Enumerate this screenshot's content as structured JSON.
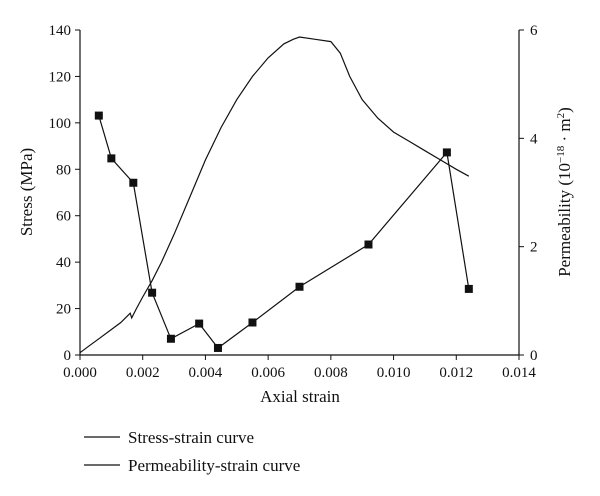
{
  "chart_data": {
    "type": "line",
    "title": "",
    "xlabel": "Axial strain",
    "ylabel_left": "Stress (MPa)",
    "ylabel_right_main": "Permeability (10",
    "ylabel_right_sup": "−18",
    "ylabel_right_mid": " · m",
    "ylabel_right_sup2": "2",
    "ylabel_right_end": ")",
    "xlim": [
      0,
      0.014
    ],
    "ylim_left": [
      0,
      140
    ],
    "ylim_right": [
      0,
      6
    ],
    "x_ticks": [
      "0.000",
      "0.002",
      "0.004",
      "0.006",
      "0.008",
      "0.010",
      "0.012",
      "0.014"
    ],
    "y_left_ticks": [
      "0",
      "20",
      "40",
      "60",
      "80",
      "100",
      "120",
      "140"
    ],
    "y_right_ticks": [
      "0",
      "2",
      "4",
      "6"
    ],
    "grid": false,
    "legend_position": "bottom",
    "series": [
      {
        "name": "Stress-strain curve",
        "axis": "left",
        "marker": "none",
        "x": [
          0.0,
          0.0003,
          0.0006,
          0.001,
          0.0013,
          0.0016,
          0.00165,
          0.0018,
          0.002,
          0.0023,
          0.0026,
          0.003,
          0.0035,
          0.004,
          0.0045,
          0.005,
          0.0055,
          0.006,
          0.0065,
          0.0068,
          0.007,
          0.0075,
          0.008,
          0.0083,
          0.0086,
          0.009,
          0.0095,
          0.01,
          0.0105,
          0.011,
          0.0115,
          0.012,
          0.0124
        ],
        "values": [
          1,
          4,
          7,
          11,
          14,
          18,
          16,
          20,
          25,
          32,
          40,
          52,
          68,
          84,
          98,
          110,
          120,
          128,
          134,
          136,
          137,
          136,
          135,
          130,
          120,
          110,
          102,
          96,
          92,
          88,
          84,
          80,
          77
        ]
      },
      {
        "name": "Permeability-strain curve",
        "axis": "right",
        "marker": "square",
        "x": [
          0.0006,
          0.001,
          0.0017,
          0.0023,
          0.0029,
          0.0038,
          0.0044,
          0.0055,
          0.007,
          0.0092,
          0.0117,
          0.0124
        ],
        "values": [
          4.42,
          3.63,
          3.18,
          1.15,
          0.3,
          0.58,
          0.13,
          0.6,
          1.26,
          2.04,
          3.74,
          1.22
        ]
      }
    ]
  }
}
